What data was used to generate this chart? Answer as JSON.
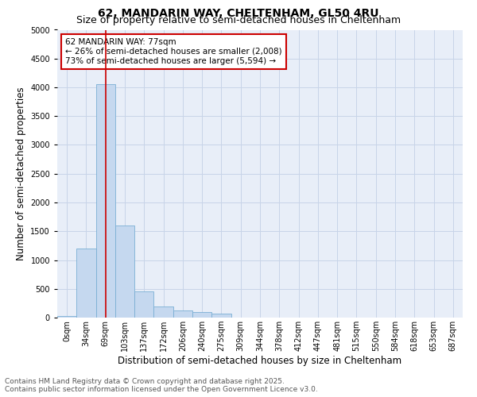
{
  "title_line1": "62, MANDARIN WAY, CHELTENHAM, GL50 4RU",
  "title_line2": "Size of property relative to semi-detached houses in Cheltenham",
  "xlabel": "Distribution of semi-detached houses by size in Cheltenham",
  "ylabel": "Number of semi-detached properties",
  "categories": [
    "0sqm",
    "34sqm",
    "69sqm",
    "103sqm",
    "137sqm",
    "172sqm",
    "206sqm",
    "240sqm",
    "275sqm",
    "309sqm",
    "344sqm",
    "378sqm",
    "412sqm",
    "447sqm",
    "481sqm",
    "515sqm",
    "550sqm",
    "584sqm",
    "618sqm",
    "653sqm",
    "687sqm"
  ],
  "bar_values": [
    30,
    1200,
    4050,
    1600,
    450,
    200,
    130,
    90,
    70,
    0,
    0,
    0,
    0,
    0,
    0,
    0,
    0,
    0,
    0,
    0,
    0
  ],
  "bar_color": "#c5d8ef",
  "bar_edge_color": "#7aafd4",
  "red_line_x": 2.0,
  "red_line_color": "#cc0000",
  "ylim": [
    0,
    5000
  ],
  "yticks": [
    0,
    500,
    1000,
    1500,
    2000,
    2500,
    3000,
    3500,
    4000,
    4500,
    5000
  ],
  "annotation_text": "62 MANDARIN WAY: 77sqm\n← 26% of semi-detached houses are smaller (2,008)\n73% of semi-detached houses are larger (5,594) →",
  "annotation_box_color": "#ffffff",
  "annotation_box_edge_color": "#cc0000",
  "footer_line1": "Contains HM Land Registry data © Crown copyright and database right 2025.",
  "footer_line2": "Contains public sector information licensed under the Open Government Licence v3.0.",
  "grid_color": "#c8d4e8",
  "bg_color": "#e8eef8",
  "title_fontsize": 10,
  "subtitle_fontsize": 9,
  "axis_label_fontsize": 8.5,
  "tick_fontsize": 7,
  "annotation_fontsize": 7.5,
  "footer_fontsize": 6.5
}
